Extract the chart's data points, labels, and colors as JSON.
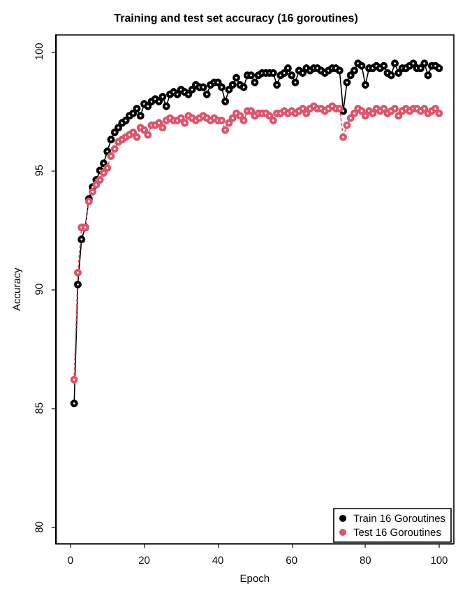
{
  "chart_data": {
    "type": "line",
    "title": "Training and test set accuracy (16 goroutines)",
    "xlabel": "Epoch",
    "ylabel": "Accuracy",
    "x": [
      1,
      2,
      3,
      4,
      5,
      6,
      7,
      8,
      9,
      10,
      11,
      12,
      13,
      14,
      15,
      16,
      17,
      18,
      19,
      20,
      21,
      22,
      23,
      24,
      25,
      26,
      27,
      28,
      29,
      30,
      31,
      32,
      33,
      34,
      35,
      36,
      37,
      38,
      39,
      40,
      41,
      42,
      43,
      44,
      45,
      46,
      47,
      48,
      49,
      50,
      51,
      52,
      53,
      54,
      55,
      56,
      57,
      58,
      59,
      60,
      61,
      62,
      63,
      64,
      65,
      66,
      67,
      68,
      69,
      70,
      71,
      72,
      73,
      74,
      75,
      76,
      77,
      78,
      79,
      80,
      81,
      82,
      83,
      84,
      85,
      86,
      87,
      88,
      89,
      90,
      91,
      92,
      93,
      94,
      95,
      96,
      97,
      98,
      99,
      100
    ],
    "series": [
      {
        "name": "Train 16 Goroutines",
        "color": "#000000",
        "line_style": "solid",
        "values": [
          85.2,
          90.2,
          92.1,
          92.6,
          93.8,
          94.3,
          94.6,
          95.0,
          95.3,
          95.8,
          96.3,
          96.6,
          96.8,
          97.0,
          97.1,
          97.3,
          97.4,
          97.6,
          97.3,
          97.8,
          97.7,
          97.9,
          98.0,
          97.9,
          98.1,
          97.7,
          98.2,
          98.3,
          98.2,
          98.4,
          98.3,
          98.2,
          98.4,
          98.6,
          98.5,
          98.5,
          98.2,
          98.6,
          98.7,
          98.7,
          98.5,
          97.9,
          98.4,
          98.6,
          98.9,
          98.6,
          98.5,
          99.0,
          99.0,
          98.7,
          99.0,
          99.1,
          99.1,
          99.1,
          99.1,
          98.6,
          99.0,
          99.1,
          99.3,
          99.0,
          98.7,
          99.2,
          99.1,
          99.3,
          99.2,
          99.3,
          99.3,
          99.2,
          99.1,
          99.2,
          99.3,
          99.3,
          99.2,
          97.5,
          98.7,
          99.0,
          99.2,
          99.5,
          99.4,
          98.6,
          99.3,
          99.3,
          99.4,
          99.3,
          99.4,
          99.1,
          99.0,
          99.5,
          99.1,
          99.3,
          99.3,
          99.4,
          99.5,
          99.3,
          99.3,
          99.5,
          99.0,
          99.4,
          99.4,
          99.3
        ]
      },
      {
        "name": "Test 16 Goroutines",
        "color": "#df536b",
        "line_style": "dotted",
        "values": [
          86.2,
          90.7,
          92.6,
          92.6,
          93.7,
          94.1,
          94.4,
          94.6,
          94.9,
          95.1,
          95.6,
          95.9,
          96.2,
          96.3,
          96.4,
          96.5,
          96.6,
          96.4,
          96.8,
          96.7,
          96.5,
          96.9,
          96.9,
          97.0,
          96.8,
          97.1,
          97.2,
          97.1,
          97.1,
          97.2,
          97.0,
          97.3,
          97.2,
          97.1,
          97.2,
          97.3,
          97.2,
          97.1,
          97.2,
          97.1,
          97.1,
          96.7,
          97.0,
          97.2,
          97.4,
          97.3,
          97.1,
          97.5,
          97.5,
          97.3,
          97.4,
          97.4,
          97.4,
          97.3,
          97.1,
          97.4,
          97.4,
          97.5,
          97.4,
          97.5,
          97.4,
          97.5,
          97.6,
          97.4,
          97.6,
          97.7,
          97.6,
          97.6,
          97.5,
          97.6,
          97.7,
          97.6,
          97.6,
          96.4,
          96.9,
          97.2,
          97.4,
          97.6,
          97.5,
          97.3,
          97.5,
          97.4,
          97.6,
          97.5,
          97.6,
          97.4,
          97.5,
          97.6,
          97.3,
          97.5,
          97.6,
          97.5,
          97.6,
          97.6,
          97.5,
          97.6,
          97.4,
          97.5,
          97.6,
          97.4
        ]
      }
    ],
    "xlim": [
      -4,
      104
    ],
    "xticks": [
      0,
      20,
      40,
      60,
      80,
      100
    ],
    "ylim": [
      79.3,
      100.7
    ],
    "yticks": [
      80,
      85,
      90,
      95,
      100
    ],
    "grid": false,
    "legend": "bottom right",
    "marker": "circle"
  }
}
